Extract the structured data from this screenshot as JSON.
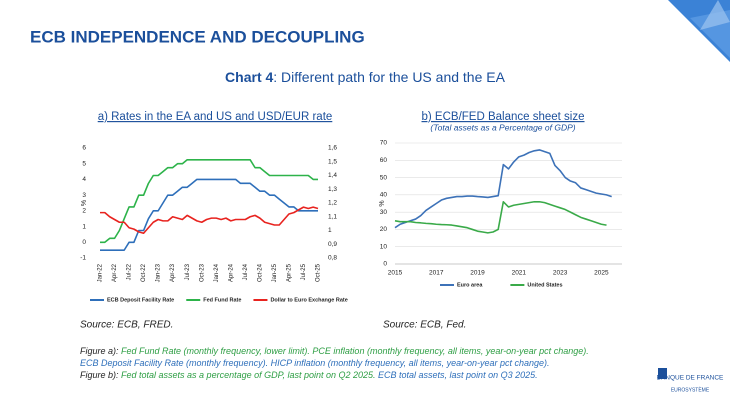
{
  "slide_title": "ECB INDEPENDENCE AND DECOUPLING",
  "chart_heading": {
    "bold": "Chart 4",
    "rest": ": Different path for the US and the EA"
  },
  "chart_data": [
    {
      "type": "line",
      "title": "a) Rates in the EA and US and USD/EUR rate",
      "ylabel": "%",
      "categories": [
        "Jan-22",
        null,
        null,
        "Apr-22",
        null,
        null,
        "Jul-22",
        null,
        null,
        "Oct-22",
        null,
        null,
        "Jan-23",
        null,
        null,
        "Apr-23",
        null,
        null,
        "Jul-23",
        null,
        null,
        "Oct-23",
        null,
        null,
        "Jan-24",
        null,
        null,
        "Apr-24",
        null,
        null,
        "Jul-24",
        null,
        null,
        "Oct-24",
        null,
        null,
        "Jan-25",
        null,
        null,
        "Apr-25",
        null,
        null,
        "Jul-25",
        null,
        null,
        "Oct-25"
      ],
      "ylim": [
        -1,
        6
      ],
      "yticks": [
        -1,
        0,
        1,
        2,
        3,
        4,
        5,
        6
      ],
      "y2lim": [
        0.8,
        1.6
      ],
      "y2ticks": [
        {
          "value": 0.8,
          "label": "0,8"
        },
        {
          "value": 0.9,
          "label": "0,9"
        },
        1,
        {
          "value": 1.1,
          "label": "1,1"
        },
        {
          "value": 1.2,
          "label": "1,2"
        },
        {
          "value": 1.3,
          "label": "1,3"
        },
        {
          "value": 1.4,
          "label": "1,4"
        },
        {
          "value": 1.5,
          "label": "1,5"
        },
        {
          "value": 1.6,
          "label": "1,6"
        }
      ],
      "grid": false,
      "legend": "bottom",
      "series": [
        {
          "name": "ECB Deposit Facility Rate",
          "color": "#2e6fba",
          "values": [
            -0.5,
            -0.5,
            -0.5,
            -0.5,
            -0.5,
            -0.5,
            0,
            0,
            0.75,
            0.75,
            1.5,
            2,
            2,
            2.5,
            3,
            3,
            3.25,
            3.5,
            3.5,
            3.75,
            4,
            4,
            4,
            4,
            4,
            4,
            4,
            4,
            4,
            3.75,
            3.75,
            3.75,
            3.5,
            3.25,
            3.25,
            3,
            3,
            2.75,
            2.5,
            2.25,
            2.25,
            2,
            2,
            2,
            2,
            2
          ]
        },
        {
          "name": "Fed Fund Rate",
          "color": "#2db34a",
          "values": [
            0,
            0,
            0.25,
            0.25,
            0.75,
            1.5,
            2.25,
            2.25,
            3,
            3,
            3.75,
            4.25,
            4.25,
            4.5,
            4.75,
            4.75,
            5,
            5,
            5.25,
            5.25,
            5.25,
            5.25,
            5.25,
            5.25,
            5.25,
            5.25,
            5.25,
            5.25,
            5.25,
            5.25,
            5.25,
            5.25,
            4.75,
            4.75,
            4.5,
            4.25,
            4.25,
            4.25,
            4.25,
            4.25,
            4.25,
            4.25,
            4.25,
            4.25,
            4,
            4
          ]
        },
        {
          "name": "Dollar to Euro Exchange Rate",
          "color": "#e8231f",
          "axis": "y2",
          "values": [
            1.13,
            1.13,
            1.1,
            1.08,
            1.06,
            1.06,
            1.02,
            1.01,
            0.99,
            0.98,
            1.02,
            1.06,
            1.08,
            1.07,
            1.07,
            1.1,
            1.09,
            1.08,
            1.11,
            1.09,
            1.07,
            1.06,
            1.08,
            1.09,
            1.09,
            1.08,
            1.09,
            1.07,
            1.08,
            1.08,
            1.08,
            1.1,
            1.11,
            1.09,
            1.06,
            1.05,
            1.04,
            1.04,
            1.08,
            1.12,
            1.13,
            1.15,
            1.17,
            1.16,
            1.17,
            1.16
          ]
        }
      ]
    },
    {
      "type": "line",
      "title": "b) ECB/FED Balance sheet size",
      "subtitle": "(Total assets as a Percentage of GDP)",
      "ylabel": "%",
      "xlim": [
        2015,
        2026
      ],
      "xticks": [
        2015,
        2017,
        2019,
        2021,
        2023,
        2025
      ],
      "ylim": [
        0,
        70
      ],
      "yticks": [
        0,
        10,
        20,
        30,
        40,
        50,
        60,
        70
      ],
      "grid": true,
      "legend": "bottom",
      "series": [
        {
          "name": "Euro area",
          "color": "#3d72b8",
          "x": [
            2015,
            2015.25,
            2015.5,
            2015.75,
            2016,
            2016.25,
            2016.5,
            2016.75,
            2017,
            2017.25,
            2017.5,
            2017.75,
            2018,
            2018.25,
            2018.5,
            2018.75,
            2019,
            2019.25,
            2019.5,
            2019.75,
            2020,
            2020.25,
            2020.5,
            2020.75,
            2021,
            2021.25,
            2021.5,
            2021.75,
            2022,
            2022.25,
            2022.5,
            2022.75,
            2023,
            2023.25,
            2023.5,
            2023.75,
            2024,
            2024.25,
            2024.5,
            2024.75,
            2025,
            2025.25,
            2025.5
          ],
          "values": [
            21,
            23,
            24,
            25,
            26,
            28,
            31,
            33,
            35,
            37,
            38,
            38.5,
            39,
            39,
            39.3,
            39.3,
            39,
            38.8,
            38.5,
            39,
            39.5,
            57.5,
            55,
            59,
            62,
            63,
            64.5,
            65.5,
            66,
            65,
            64,
            57,
            54,
            50,
            48,
            47,
            44,
            43,
            42,
            41,
            40.5,
            40,
            39
          ]
        },
        {
          "name": "United States",
          "color": "#3aaa49",
          "x": [
            2015,
            2015.25,
            2015.5,
            2015.75,
            2016,
            2016.25,
            2016.5,
            2016.75,
            2017,
            2017.25,
            2017.5,
            2017.75,
            2018,
            2018.25,
            2018.5,
            2018.75,
            2019,
            2019.25,
            2019.5,
            2019.75,
            2020,
            2020.25,
            2020.5,
            2020.75,
            2021,
            2021.25,
            2021.5,
            2021.75,
            2022,
            2022.25,
            2022.5,
            2022.75,
            2023,
            2023.25,
            2023.5,
            2023.75,
            2024,
            2024.25,
            2024.5,
            2024.75,
            2025,
            2025.25
          ],
          "values": [
            25,
            24.5,
            24.5,
            24.5,
            24,
            23.8,
            23.5,
            23.3,
            23,
            22.8,
            22.7,
            22.5,
            22,
            21.5,
            21,
            20,
            19,
            18.5,
            18,
            18.5,
            20,
            36,
            33,
            34,
            34.5,
            35,
            35.5,
            36,
            36,
            35.5,
            34.5,
            33.5,
            32.5,
            31.5,
            30,
            28.5,
            27,
            26,
            25,
            24,
            23,
            22.5
          ]
        }
      ]
    }
  ],
  "sources": [
    "Source: ECB, FRED.",
    "Source: ECB, Fed."
  ],
  "notes": [
    [
      {
        "text": "Figure a): ",
        "color": "#222222"
      },
      {
        "text": "Fed Fund Rate (monthly frequency, lower limit). PCE inflation (monthly frequency, all items, year-on-year pct change).",
        "color": "#2e9e44"
      }
    ],
    [
      {
        "text": "ECB Deposit Facility Rate (monthly frequency). HICP inflation (monthly frequency, all items, year-on-year pct change).",
        "color": "#2e6fba"
      }
    ],
    [
      {
        "text": "Figure b): ",
        "color": "#222222"
      },
      {
        "text": "Fed total assets as a percentage of GDP, last point on Q2 2025.",
        "color": "#2e9e44"
      },
      {
        "text": " ECB total assets, last point on Q3 2025.",
        "color": "#2e6fba"
      }
    ]
  ],
  "logo": {
    "name": "BANQUE DE FRANCE",
    "sub": "EUROSYSTÈME"
  }
}
